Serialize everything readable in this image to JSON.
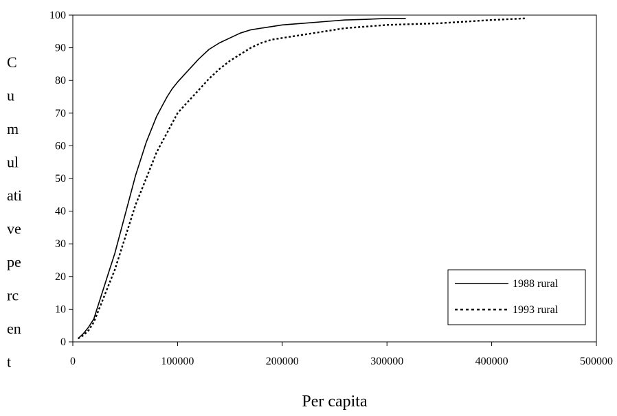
{
  "chart_data": {
    "type": "line",
    "title": "",
    "xlabel": "Per capita",
    "ylabel": "Cumulative percent",
    "ylabel_lines": [
      "C",
      "u",
      "m",
      "ul",
      "ati",
      "ve",
      "pe",
      "rc",
      "en",
      "t"
    ],
    "xlim": [
      0,
      500000
    ],
    "ylim": [
      0,
      100
    ],
    "x_ticks": [
      0,
      100000,
      200000,
      300000,
      400000,
      500000
    ],
    "y_ticks": [
      0,
      10,
      20,
      30,
      40,
      50,
      60,
      70,
      80,
      90,
      100
    ],
    "grid": false,
    "legend_position": "bottom-right",
    "series": [
      {
        "name": "1988 rural",
        "style": "solid",
        "color": "#000000",
        "x": [
          5000,
          10000,
          15000,
          20000,
          25000,
          30000,
          35000,
          40000,
          45000,
          50000,
          55000,
          60000,
          65000,
          70000,
          75000,
          80000,
          85000,
          90000,
          95000,
          100000,
          110000,
          120000,
          130000,
          140000,
          150000,
          160000,
          170000,
          180000,
          190000,
          200000,
          220000,
          240000,
          260000,
          280000,
          300000,
          318000
        ],
        "y": [
          1,
          2.5,
          4.5,
          7,
          12,
          17,
          22,
          27,
          33,
          39,
          45,
          51,
          56,
          61,
          65,
          69,
          72,
          75,
          77.5,
          79.5,
          83,
          86.5,
          89.5,
          91.5,
          93,
          94.5,
          95.5,
          96,
          96.5,
          97,
          97.5,
          98,
          98.5,
          98.7,
          99,
          99
        ]
      },
      {
        "name": "1993 rural",
        "style": "dotted",
        "color": "#000000",
        "x": [
          5000,
          10000,
          15000,
          20000,
          25000,
          30000,
          35000,
          40000,
          45000,
          50000,
          55000,
          60000,
          65000,
          70000,
          75000,
          80000,
          85000,
          90000,
          95000,
          100000,
          110000,
          120000,
          130000,
          140000,
          150000,
          160000,
          170000,
          180000,
          190000,
          200000,
          220000,
          240000,
          260000,
          280000,
          300000,
          350000,
          400000,
          432000
        ],
        "y": [
          1,
          2,
          3.5,
          6,
          10,
          14,
          18,
          22,
          27,
          32,
          37,
          42,
          46,
          50,
          54,
          58,
          61,
          64,
          67,
          70,
          73.5,
          77,
          80.5,
          83.5,
          86,
          88,
          90,
          91.5,
          92.5,
          93,
          94,
          95,
          96,
          96.5,
          97,
          97.5,
          98.5,
          99
        ]
      }
    ]
  }
}
